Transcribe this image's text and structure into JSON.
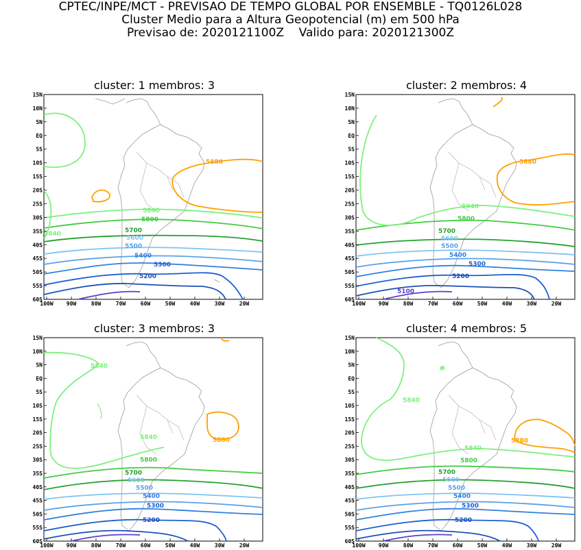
{
  "header": {
    "line1": "CPTEC/INPE/MCT - PREVISAO DE TEMPO GLOBAL POR ENSEMBLE - TQ0126L028",
    "line2": "Cluster Medio para a Altura Geopotencial (m) em 500 hPa",
    "line3": "Previsao de: 2020121100Z    Valido para: 2020121300Z"
  },
  "axes": {
    "lat_labels": [
      "15N",
      "10N",
      "5N",
      "EQ",
      "5S",
      "10S",
      "15S",
      "20S",
      "25S",
      "30S",
      "35S",
      "40S",
      "45S",
      "50S",
      "55S",
      "60S"
    ],
    "lon_labels": [
      "100W",
      "90W",
      "80W",
      "70W",
      "60W",
      "50W",
      "40W",
      "30W",
      "20W"
    ]
  },
  "colors": {
    "5100": "#5a3ec8",
    "5200": "#1c5fcf",
    "5300": "#2f7fe0",
    "5400": "#2f7fe0",
    "5500": "#6fb5ee",
    "5600": "#7fc3f2",
    "5700": "#22a030",
    "5800": "#3fcc3f",
    "5840": "#7cf07c",
    "5880": "#ff9f00",
    "coast": "#999999"
  },
  "panels": [
    {
      "title": "cluster: 1   membros: 3",
      "labels": [
        "5880",
        "5840",
        "5800",
        "5840",
        "5700",
        "5600",
        "5500",
        "5400",
        "5300",
        "5200"
      ]
    },
    {
      "title": "cluster: 2   membros: 4",
      "labels": [
        "5880",
        "5840",
        "5800",
        "5700",
        "5600",
        "5500",
        "5400",
        "5300",
        "5200",
        "5100"
      ]
    },
    {
      "title": "cluster: 3   membros: 3",
      "labels": [
        "5840",
        "5880",
        "5840",
        "5800",
        "5700",
        "5600",
        "5500",
        "5400",
        "5300",
        "5200"
      ]
    },
    {
      "title": "cluster: 4   membros: 5",
      "labels": [
        "0",
        "5840",
        "5880",
        "5840",
        "5800",
        "5700",
        "5600",
        "5500",
        "5400",
        "5300",
        "5200"
      ]
    }
  ]
}
